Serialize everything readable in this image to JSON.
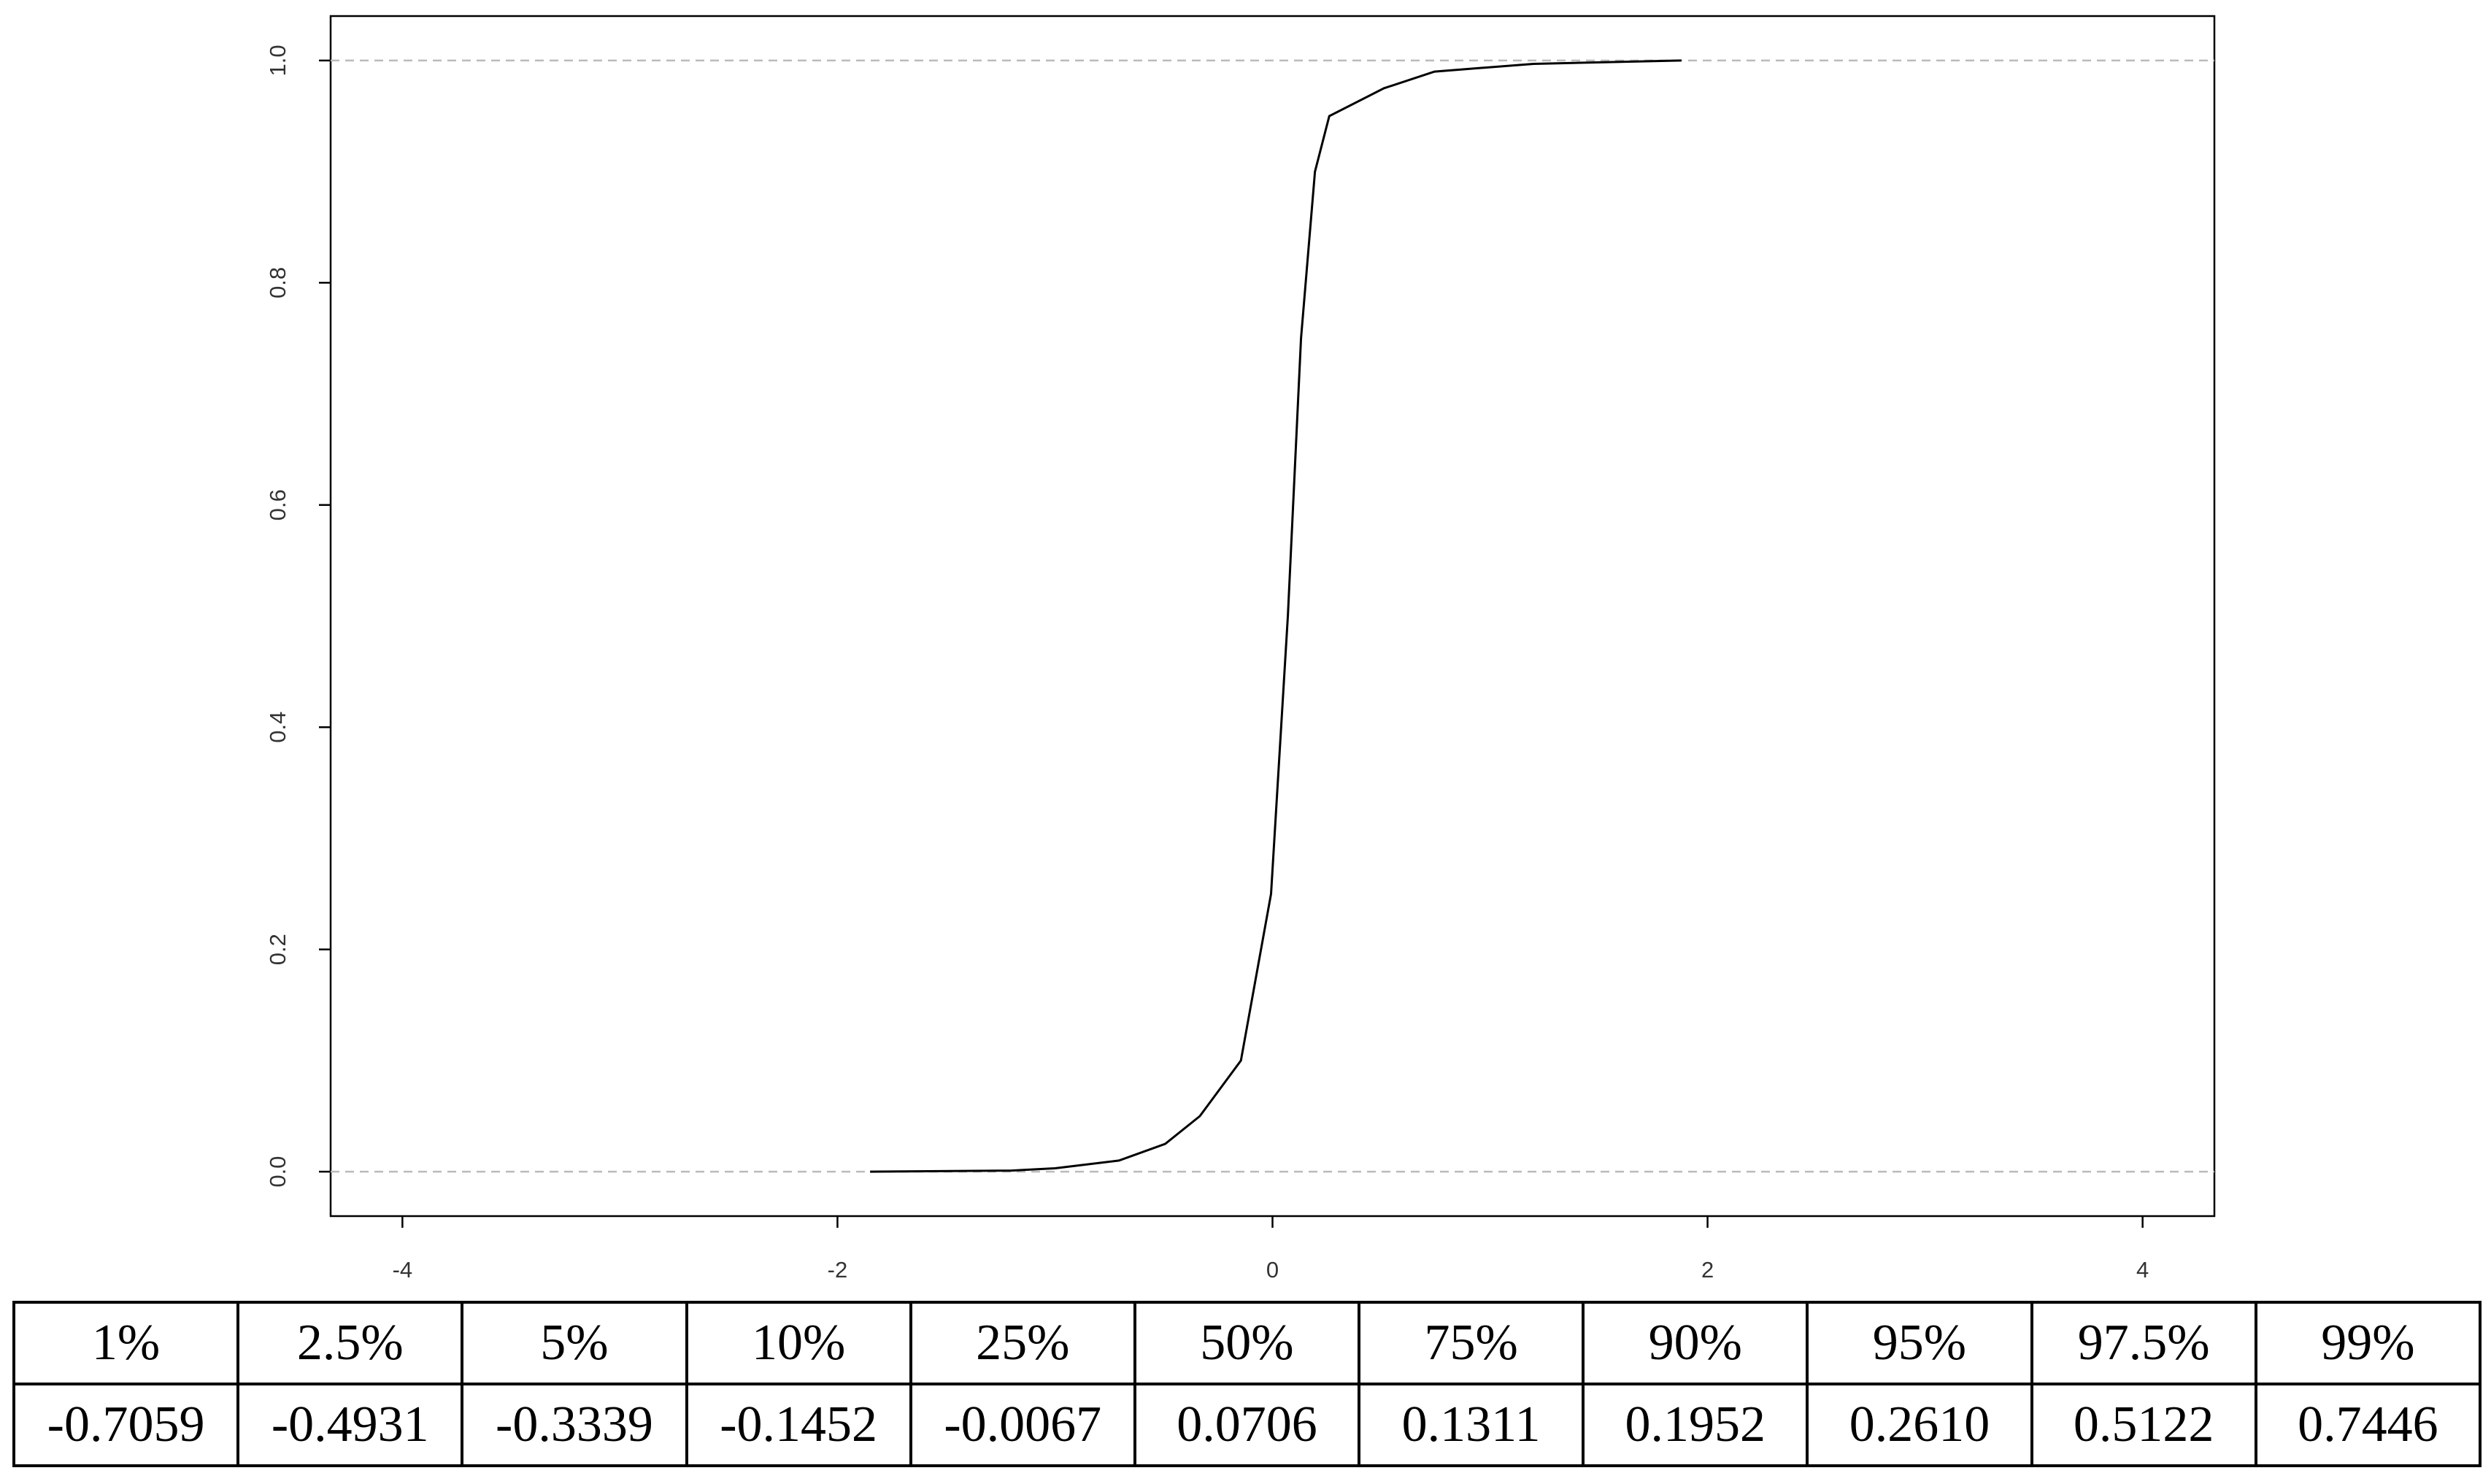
{
  "chart_data": {
    "type": "line",
    "x": [
      -1.85,
      -1.2,
      -1.0,
      -0.7059,
      -0.4931,
      -0.3339,
      -0.1452,
      -0.0067,
      0.0706,
      0.1311,
      0.1952,
      0.261,
      0.5122,
      0.7446,
      1.2,
      1.88
    ],
    "values": [
      0,
      0.001,
      0.003,
      0.01,
      0.025,
      0.05,
      0.1,
      0.25,
      0.5,
      0.75,
      0.9,
      0.95,
      0.975,
      0.99,
      0.997,
      1.0
    ],
    "color": "#000000",
    "hlines": [
      0,
      1
    ],
    "hline_color": "#bbbbbb",
    "xlim": [
      -4.33,
      4.33
    ],
    "ylim": [
      -0.04,
      1.04
    ],
    "xticks": [
      -4,
      -2,
      0,
      2,
      4
    ],
    "yticks": [
      {
        "value": 0,
        "label": "0.0"
      },
      {
        "value": 0.2,
        "label": "0.2"
      },
      {
        "value": 0.4,
        "label": "0.4"
      },
      {
        "value": 0.6,
        "label": "0.6"
      },
      {
        "value": 0.8,
        "label": "0.8"
      },
      {
        "value": 1,
        "label": "1.0"
      }
    ],
    "grid": false
  },
  "table": {
    "header": [
      "1%",
      "2.5%",
      "5%",
      "10%",
      "25%",
      "50%",
      "75%",
      "90%",
      "95%",
      "97.5%",
      "99%"
    ],
    "values": [
      "-0.7059",
      "-0.4931",
      "-0.3339",
      "-0.1452",
      "-0.0067",
      "0.0706",
      "0.1311",
      "0.1952",
      "0.2610",
      "0.5122",
      "0.7446"
    ]
  }
}
